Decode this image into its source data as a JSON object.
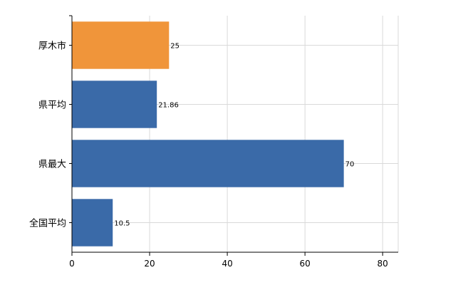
{
  "chart_data": {
    "type": "bar",
    "orientation": "horizontal",
    "categories": [
      "厚木市",
      "県平均",
      "県最大",
      "全国平均"
    ],
    "values": [
      25,
      21.86,
      70,
      10.5
    ],
    "value_labels": [
      "25",
      "21.86",
      "70",
      "10.5"
    ],
    "bar_colors": [
      "#f0953a",
      "#3a6aa8",
      "#3a6aa8",
      "#3a6aa8"
    ],
    "xlim": [
      0,
      84
    ],
    "x_ticks": [
      0,
      20,
      40,
      60,
      80
    ],
    "x_tick_labels": [
      "0",
      "20",
      "40",
      "60",
      "80"
    ],
    "grid": true,
    "title": "",
    "xlabel": "",
    "ylabel": ""
  }
}
